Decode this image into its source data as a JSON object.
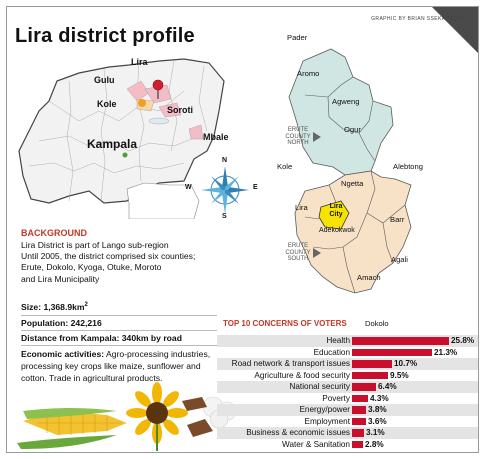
{
  "credit": "GRAPHIC BY BRIAN SSEKAMATTE",
  "title": "Lira district profile",
  "uganda_map": {
    "labels": [
      "Lira",
      "Gulu",
      "Kole",
      "Soroti",
      "Kampala",
      "Mbale"
    ]
  },
  "compass": {
    "n": "N",
    "s": "S",
    "e": "E",
    "w": "W"
  },
  "district_map": {
    "neighbors": {
      "pader": "Pader",
      "kole": "Kole",
      "alebtong": "Alebtong",
      "dokolo": "Dokolo"
    },
    "regions": {
      "north": "ERUTE\nCOUNTY\nNORTH",
      "south": "ERUTE\nCOUNTY\nSOUTH"
    },
    "subcounties": [
      "Aromo",
      "Agweng",
      "Ogur",
      "Ngetta",
      "Lira",
      "Lira City",
      "Adekokwok",
      "Barr",
      "Agali",
      "Amach"
    ],
    "colors": {
      "north": "#cfe6e2",
      "south": "#f7e1c7",
      "city": "#f6e400",
      "border": "#5a5a5a"
    }
  },
  "background": {
    "heading": "BACKGROUND",
    "lines": [
      "Lira District is part of Lango sub-region",
      "Until 2005, the district comprised six counties;",
      "Erute, Dokolo, Kyoga, Otuke, Moroto",
      "and Lira Municipality"
    ]
  },
  "facts": {
    "size_label": "Size:",
    "size_value": "1,368.9km",
    "size_sup": "2",
    "population_label": "Population:",
    "population_value": "242,216",
    "distance": "Distance from Kampala: 340km by road",
    "econ_label": "Economic activities:",
    "econ_text": " Agro-processing industries, processing key crops like maize, sunflower and cotton. Trade in agricultural products."
  },
  "concerns_title": "TOP 10 CONCERNS OF VOTERS",
  "chart_data": {
    "type": "bar",
    "title": "TOP 10 CONCERNS OF VOTERS",
    "categories": [
      "Health",
      "Education",
      "Road network & transport issues",
      "Agriculture & food security",
      "National security",
      "Poverty",
      "Energy/power",
      "Employment",
      "Business & economic issues",
      "Water & Sanitation"
    ],
    "values": [
      25.8,
      21.3,
      10.7,
      9.5,
      6.4,
      4.3,
      3.8,
      3.6,
      3.1,
      2.8
    ],
    "labels": [
      "25.8%",
      "21.3%",
      "10.7%",
      "9.5%",
      "6.4%",
      "4.3%",
      "3.8%",
      "3.6%",
      "3.1%",
      "2.8%"
    ],
    "bar_color": "#c8102e",
    "xlim": [
      0,
      26
    ]
  }
}
